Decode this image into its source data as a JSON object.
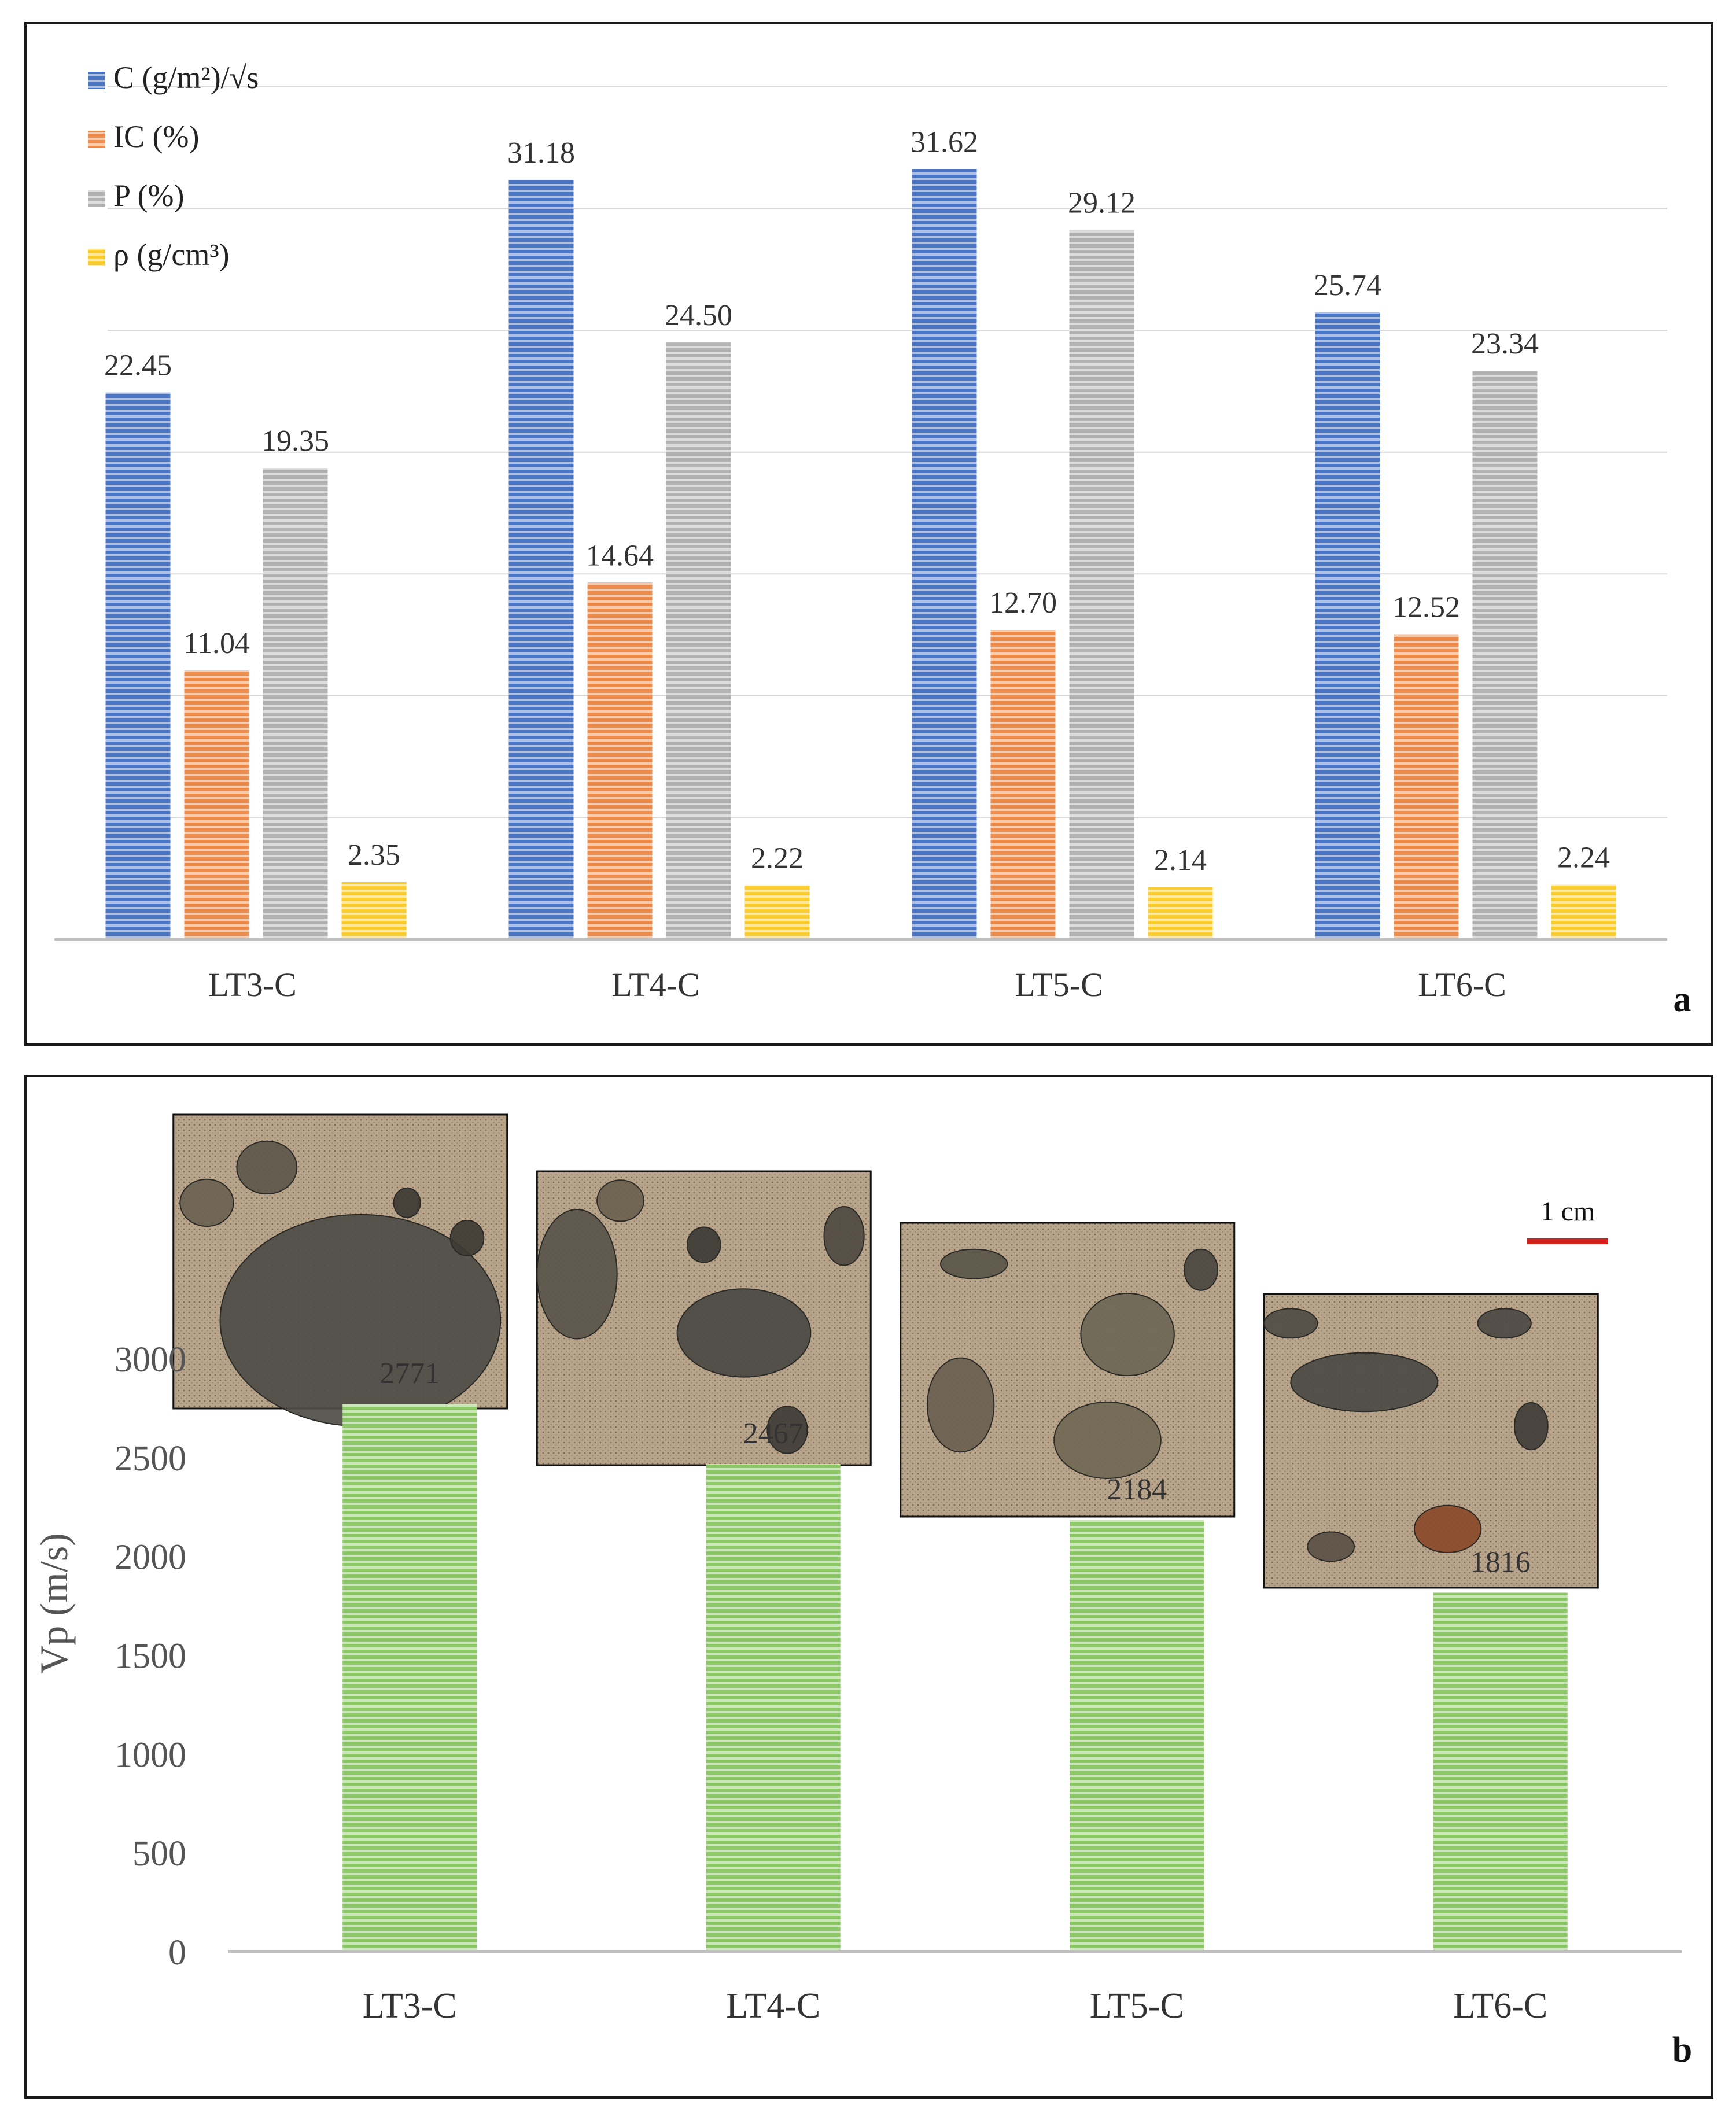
{
  "colors": {
    "C": "#4a74c4",
    "IC": "#ec8a4a",
    "P": "#b1b1b1",
    "rho": "#fbcc2e",
    "Vp": "#8cc866",
    "grid": "#d9d9d9",
    "axis": "#bfbfbf",
    "scalebar": "#d81e1e"
  },
  "chart_data": [
    {
      "panel_label": "a",
      "type": "bar",
      "categories": [
        "LT3-C",
        "LT4-C",
        "LT5-C",
        "LT6-C"
      ],
      "series": [
        {
          "key": "C",
          "name": "C (g/m²)/√s",
          "values": [
            22.45,
            31.18,
            31.62,
            25.74
          ]
        },
        {
          "key": "IC",
          "name": "IC (%)",
          "values": [
            11.04,
            14.64,
            12.7,
            12.52
          ]
        },
        {
          "key": "P",
          "name": "P (%)",
          "values": [
            19.35,
            24.5,
            29.12,
            23.34
          ]
        },
        {
          "key": "rho",
          "name": "ρ (g/cm³)",
          "values": [
            2.35,
            2.22,
            2.14,
            2.24
          ]
        }
      ],
      "value_labels": [
        [
          "22.45",
          "31.18",
          "31.62",
          "25.74"
        ],
        [
          "11.04",
          "14.64",
          "12.70",
          "12.52"
        ],
        [
          "19.35",
          "24.50",
          "29.12",
          "23.34"
        ],
        [
          "2.35",
          "2.22",
          "2.14",
          "2.24"
        ]
      ],
      "legend_position": "top-left",
      "ylim": [
        0,
        35
      ],
      "grid": true,
      "y_tick_labels_shown": false
    },
    {
      "panel_label": "b",
      "type": "bar",
      "categories": [
        "LT3-C",
        "LT4-C",
        "LT5-C",
        "LT6-C"
      ],
      "series": [
        {
          "key": "Vp",
          "values": [
            2771,
            2467,
            2184,
            1816
          ]
        }
      ],
      "value_labels": [
        "2771",
        "2467",
        "2184",
        "1816"
      ],
      "ylabel": "Vp (m/s)",
      "ylim": [
        0,
        3000
      ],
      "yticks": [
        "0",
        "500",
        "1000",
        "1500",
        "2000",
        "2500",
        "3000"
      ],
      "grid": false,
      "scale_bar_label": "1 cm",
      "sample_photos": [
        "LT3-C",
        "LT4-C",
        "LT5-C",
        "LT6-C"
      ]
    }
  ]
}
